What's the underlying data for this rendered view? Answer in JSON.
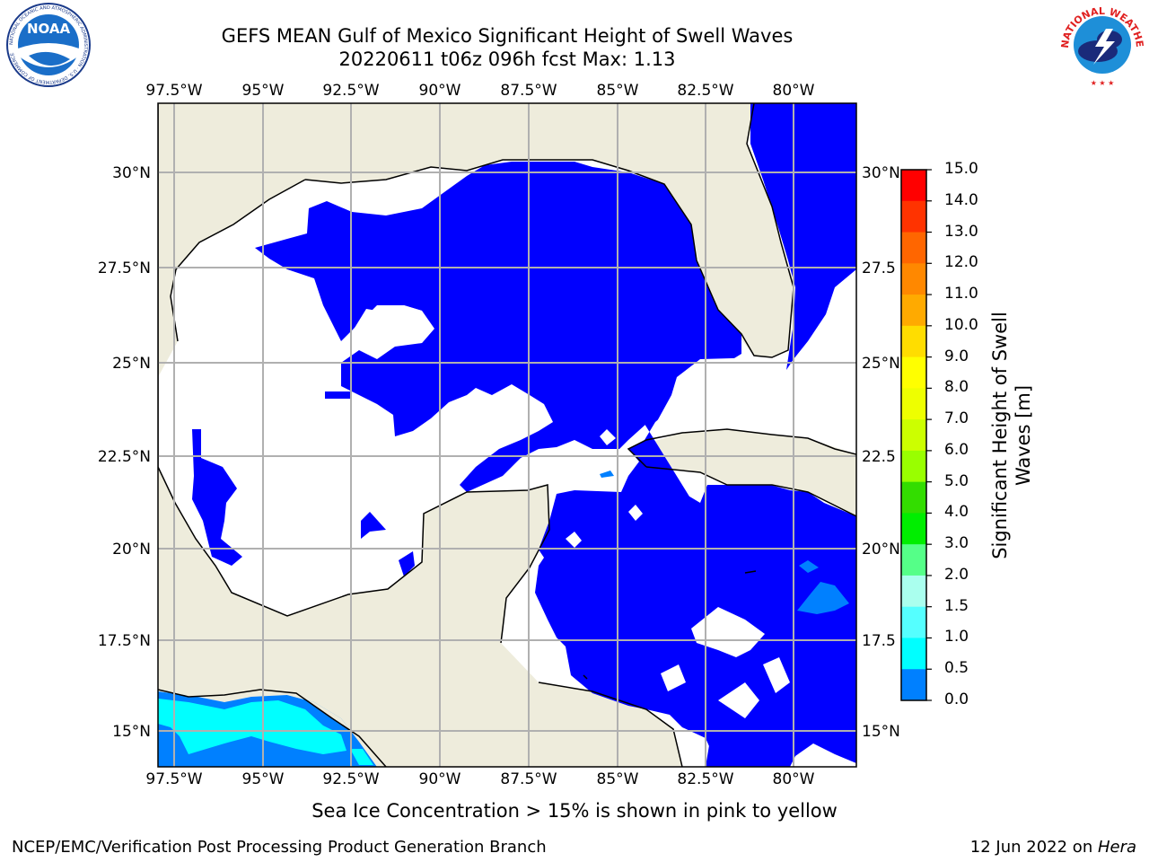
{
  "title": {
    "line1": "GEFS MEAN Gulf of Mexico Significant Height of Swell Waves",
    "line2": "20220611 t06z 096h fcst   Max: 1.13"
  },
  "map": {
    "lon_labels": [
      "97.5°W",
      "95°W",
      "92.5°W",
      "90°W",
      "87.5°W",
      "85°W",
      "82.5°W",
      "80°W"
    ],
    "lat_labels_left": [
      "30°N",
      "27.5°N",
      "25°N",
      "22.5°N",
      "20°N",
      "17.5°N",
      "15°N"
    ],
    "lat_labels_right": [
      "30°N",
      "27.5",
      "25°N",
      "22.5",
      "20°N",
      "17.5",
      "15°N"
    ],
    "colors": {
      "land": "#eeecdc",
      "water_mask": "#ffffff",
      "grid": "#b0b0b0"
    }
  },
  "colorbar": {
    "title_line1": "Significant Height of Swell",
    "title_line2": "Waves [m]",
    "ticks": [
      "15.0",
      "14.0",
      "13.0",
      "12.0",
      "11.0",
      "10.0",
      "9.0",
      "8.0",
      "7.0",
      "6.0",
      "5.0",
      "4.0",
      "3.0",
      "2.0",
      "1.5",
      "1.0",
      "0.5",
      "0.0"
    ],
    "colors": [
      "#ff0000",
      "#ff3300",
      "#ff6600",
      "#ff8800",
      "#ffaa00",
      "#ffdd00",
      "#ffff00",
      "#eeff00",
      "#ccff00",
      "#99ff00",
      "#33dd00",
      "#00ee00",
      "#55ff88",
      "#aaffee",
      "#55ffff",
      "#00ffff",
      "#0080ff",
      "#0000ff"
    ]
  },
  "footer": {
    "note": "Sea Ice Concentration > 15% is shown in pink to yellow",
    "credit": "NCEP/EMC/Verification Post Processing Product Generation Branch",
    "date_prefix": "12 Jun 2022 on ",
    "date_host": "Hera"
  },
  "logos": {
    "noaa": "NOAA",
    "nws": "NATIONAL WEATHER SERVICE",
    "noaa_ring": "NATIONAL OCEANIC AND ATMOSPHERIC ADMINISTRATION · U.S. DEPARTMENT OF COMMERCE"
  }
}
